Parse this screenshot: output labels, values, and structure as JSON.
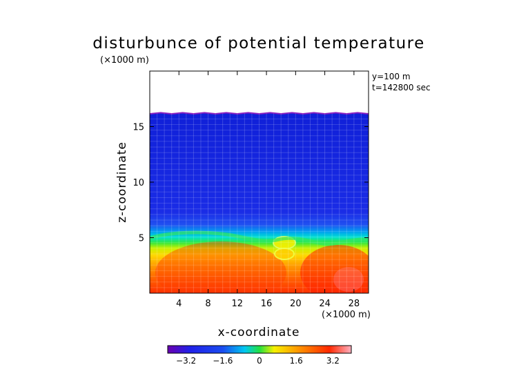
{
  "chart_data": {
    "type": "heatmap",
    "title": "disturbunce of potential temperature",
    "unit_label": "(×1000 m)",
    "annotations": [
      "y=100 m",
      "t=142800 sec"
    ],
    "xlabel": "x-coordinate",
    "ylabel": "z-coordinate",
    "x_unit": "(×1000 m)",
    "xlim": [
      0,
      30
    ],
    "ylim": [
      0,
      20
    ],
    "x_ticks": [
      4,
      8,
      12,
      16,
      20,
      24,
      28
    ],
    "y_ticks": [
      5,
      10,
      15
    ],
    "x_tick_labels": [
      "4",
      "8",
      "12",
      "16",
      "20",
      "24",
      "28"
    ],
    "y_tick_labels": [
      "5",
      "10",
      "15"
    ],
    "colorbar": {
      "min": -4,
      "max": 4,
      "ticks": [
        -3.2,
        -1.6,
        0,
        1.6,
        3.2
      ],
      "tick_labels": [
        "−3.2",
        "−1.6",
        "0",
        "1.6",
        "3.2"
      ]
    },
    "field_top_z": 16.2,
    "grid": true,
    "colors": {
      "purple": "#6a00b0",
      "blue": "#1a2ce6",
      "cyan": "#00d8e8",
      "green": "#22e040",
      "yellow": "#f6f000",
      "orange": "#ff9000",
      "red": "#ff2800",
      "pink": "#ffb0c0"
    }
  }
}
